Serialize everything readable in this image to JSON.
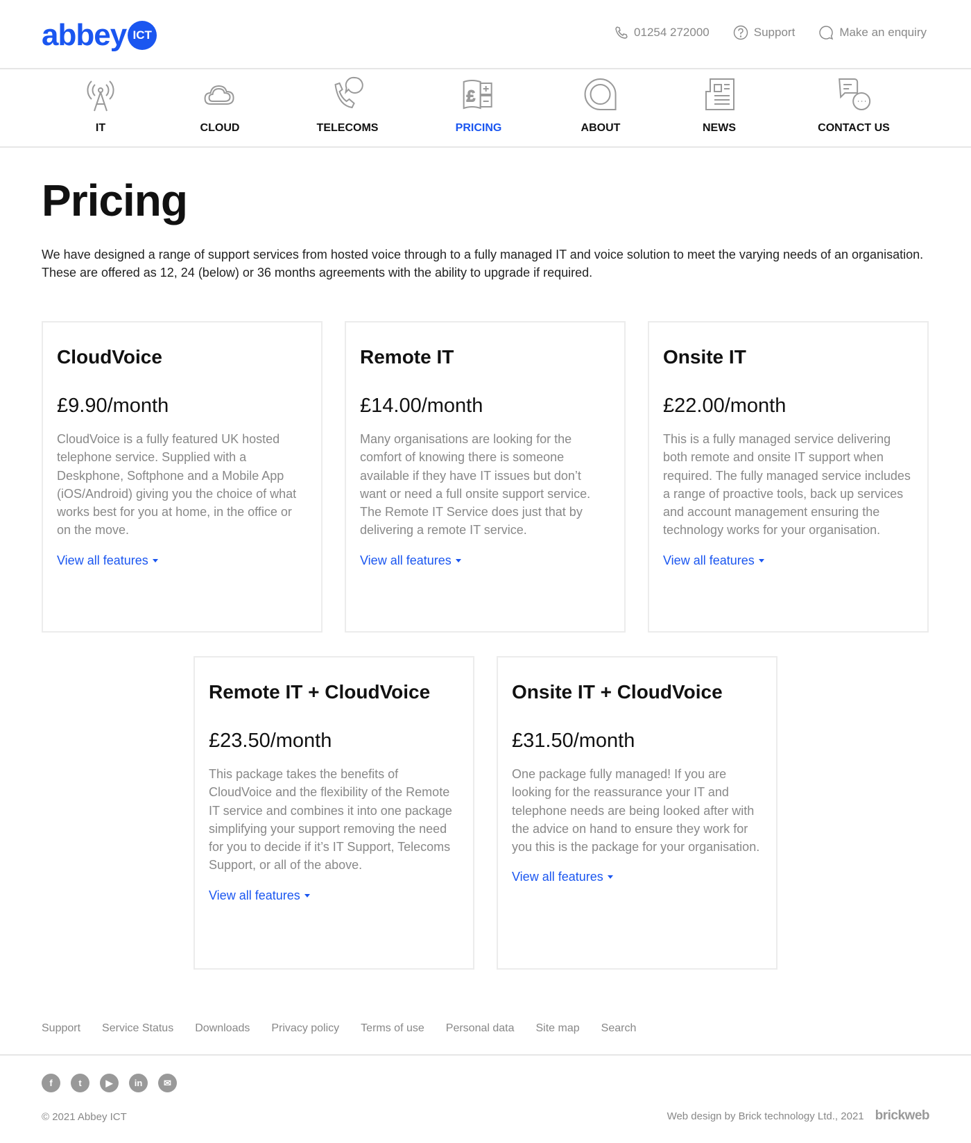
{
  "header": {
    "logo_text": "abbey",
    "logo_badge": "ICT",
    "phone": "01254 272000",
    "support": "Support",
    "enquiry": "Make an enquiry"
  },
  "nav": [
    {
      "label": "IT",
      "icon": "antenna-icon"
    },
    {
      "label": "CLOUD",
      "icon": "cloud-icon"
    },
    {
      "label": "TELECOMS",
      "icon": "phone-chat-icon"
    },
    {
      "label": "PRICING",
      "icon": "pricing-icon",
      "active": true
    },
    {
      "label": "ABOUT",
      "icon": "about-icon"
    },
    {
      "label": "NEWS",
      "icon": "newspaper-icon"
    },
    {
      "label": "CONTACT US",
      "icon": "chat-icon"
    }
  ],
  "accent": "#1a56f0",
  "page": {
    "title": "Pricing",
    "intro": "We have designed a range of support services from hosted voice through to a fully managed IT and voice solution to meet the varying needs of an organisation. These are offered as 12, 24 (below) or 36 months agreements with the ability to upgrade if required."
  },
  "cards": [
    {
      "title": "CloudVoice",
      "price": "£9.90/month",
      "desc": "CloudVoice is a fully featured UK hosted telephone service. Supplied with a Deskphone, Softphone and a Mobile App (iOS/Android) giving you the choice of what works best for you at home, in the office or on the move.",
      "link": "View all features"
    },
    {
      "title": "Remote IT",
      "price": "£14.00/month",
      "desc": "Many organisations are looking for the comfort of knowing there is someone available if they have IT issues but don’t want or need a full onsite support service. The Remote IT Service does just that by delivering a remote IT service.",
      "link": "View all features"
    },
    {
      "title": "Onsite IT",
      "price": "£22.00/month",
      "desc": "This is a fully managed service delivering both remote and onsite IT support when required. The fully managed service includes a range of proactive tools, back up services and account management ensuring the technology works for your organisation.",
      "link": "View all features"
    },
    {
      "title": "Remote IT + CloudVoice",
      "price": "£23.50/month",
      "desc": "This package takes the benefits of CloudVoice and the flexibility of the Remote IT service and combines it into one package simplifying your support removing the need for you to decide if it’s IT Support, Telecoms Support, or all of the above.",
      "link": "View all features"
    },
    {
      "title": "Onsite IT + CloudVoice",
      "price": "£31.50/month",
      "desc": "One package fully managed! If you are looking for the reassurance your IT and telephone needs are being looked after with the advice on hand to ensure they work for you this is the package for your organisation.",
      "link": "View all features"
    }
  ],
  "footer": {
    "links": [
      "Support",
      "Service Status",
      "Downloads",
      "Privacy policy",
      "Terms of use",
      "Personal data",
      "Site map",
      "Search"
    ],
    "social": [
      "facebook-icon",
      "twitter-icon",
      "youtube-icon",
      "linkedin-icon",
      "email-icon"
    ],
    "copyright": "© 2021 Abbey ICT",
    "credit": "Web design by Brick technology Ltd., 2021",
    "credit_logo": "brickweb"
  }
}
